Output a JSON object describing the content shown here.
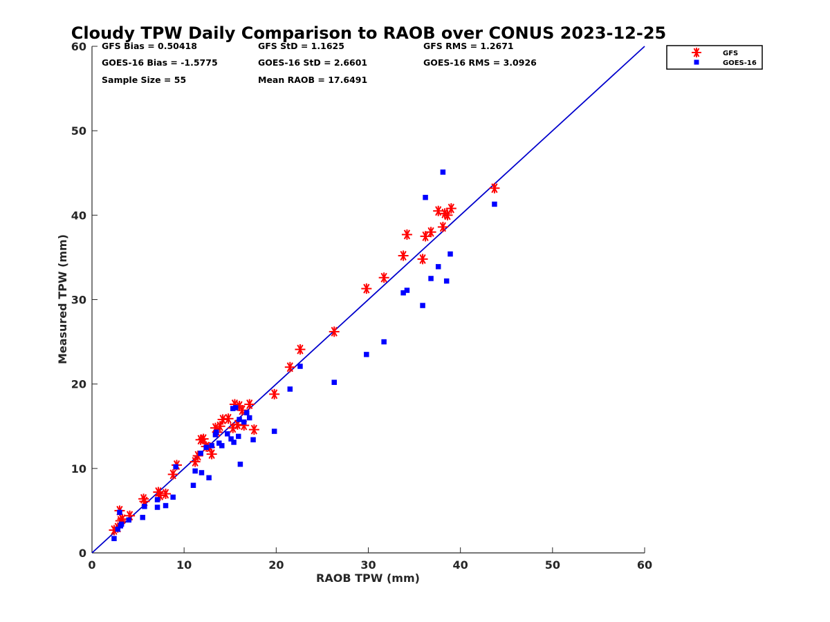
{
  "chart_data": {
    "type": "scatter",
    "title": "Cloudy TPW Daily Comparison to RAOB over CONUS 2023-12-25",
    "xlabel": "RAOB TPW (mm)",
    "ylabel": "Measured TPW (mm)",
    "xlim": [
      0,
      60
    ],
    "ylim": [
      0,
      60
    ],
    "xticks": [
      "0",
      "10",
      "20",
      "30",
      "40",
      "50",
      "60"
    ],
    "yticks": [
      "0",
      "10",
      "20",
      "30",
      "40",
      "50",
      "60"
    ],
    "grid": false,
    "legend_position": "outside-top-right",
    "reference_line": {
      "x": [
        0,
        60
      ],
      "y": [
        0,
        60
      ],
      "color": "#0000cc"
    },
    "stats": [
      [
        "GFS Bias = 0.50418",
        "GFS StD = 1.1625",
        "GFS RMS = 1.2671"
      ],
      [
        "GOES-16 Bias = -1.5775",
        "GOES-16 StD = 2.6601",
        "GOES-16 RMS = 3.0926"
      ],
      [
        "Sample Size = 55",
        "Mean RAOB = 17.6491",
        ""
      ]
    ],
    "series": [
      {
        "name": "GFS",
        "marker": "asterisk",
        "color": "#ff0000",
        "points": [
          [
            2.4,
            2.7
          ],
          [
            2.8,
            3.0
          ],
          [
            3.0,
            5.0
          ],
          [
            3.1,
            3.8
          ],
          [
            3.3,
            4.0
          ],
          [
            4.1,
            4.4
          ],
          [
            5.6,
            6.4
          ],
          [
            5.7,
            6.1
          ],
          [
            7.2,
            7.2
          ],
          [
            7.4,
            6.8
          ],
          [
            8.0,
            7.0
          ],
          [
            8.8,
            9.3
          ],
          [
            9.2,
            10.4
          ],
          [
            11.2,
            10.8
          ],
          [
            11.5,
            11.5
          ],
          [
            11.8,
            13.4
          ],
          [
            12.1,
            13.5
          ],
          [
            12.4,
            12.6
          ],
          [
            12.8,
            12.5
          ],
          [
            13.0,
            11.7
          ],
          [
            13.4,
            14.8
          ],
          [
            13.6,
            14.3
          ],
          [
            13.9,
            15.0
          ],
          [
            14.2,
            15.8
          ],
          [
            14.8,
            15.9
          ],
          [
            15.3,
            14.8
          ],
          [
            15.5,
            17.6
          ],
          [
            15.8,
            15.2
          ],
          [
            16.0,
            17.4
          ],
          [
            16.3,
            16.9
          ],
          [
            16.5,
            15.1
          ],
          [
            17.1,
            17.6
          ],
          [
            17.6,
            14.6
          ],
          [
            19.8,
            18.8
          ],
          [
            21.5,
            22.0
          ],
          [
            22.6,
            24.1
          ],
          [
            26.3,
            26.2
          ],
          [
            29.8,
            31.3
          ],
          [
            31.7,
            32.6
          ],
          [
            33.8,
            35.2
          ],
          [
            34.2,
            37.7
          ],
          [
            35.9,
            34.8
          ],
          [
            36.2,
            37.5
          ],
          [
            36.8,
            38.0
          ],
          [
            37.6,
            40.5
          ],
          [
            38.1,
            38.6
          ],
          [
            38.3,
            40.2
          ],
          [
            38.6,
            40.0
          ],
          [
            39.0,
            40.8
          ],
          [
            43.7,
            43.2
          ]
        ]
      },
      {
        "name": "GOES-16",
        "marker": "square",
        "color": "#0000ff",
        "points": [
          [
            2.4,
            1.7
          ],
          [
            2.8,
            2.8
          ],
          [
            3.0,
            4.8
          ],
          [
            3.1,
            3.2
          ],
          [
            3.2,
            3.4
          ],
          [
            4.0,
            3.9
          ],
          [
            5.5,
            4.2
          ],
          [
            5.7,
            5.5
          ],
          [
            7.1,
            5.4
          ],
          [
            7.1,
            6.3
          ],
          [
            8.0,
            5.6
          ],
          [
            8.8,
            6.6
          ],
          [
            9.1,
            10.2
          ],
          [
            11.0,
            8.0
          ],
          [
            11.2,
            9.7
          ],
          [
            11.8,
            11.8
          ],
          [
            11.9,
            9.5
          ],
          [
            12.4,
            12.5
          ],
          [
            12.7,
            8.9
          ],
          [
            13.0,
            12.7
          ],
          [
            13.4,
            14.0
          ],
          [
            13.5,
            14.3
          ],
          [
            13.8,
            13.0
          ],
          [
            14.1,
            12.7
          ],
          [
            14.7,
            14.1
          ],
          [
            15.1,
            13.5
          ],
          [
            15.3,
            17.1
          ],
          [
            15.4,
            13.1
          ],
          [
            15.6,
            17.2
          ],
          [
            15.9,
            13.8
          ],
          [
            16.0,
            15.8
          ],
          [
            16.1,
            10.5
          ],
          [
            16.5,
            15.5
          ],
          [
            16.8,
            16.6
          ],
          [
            17.1,
            16.0
          ],
          [
            17.5,
            13.4
          ],
          [
            19.8,
            14.4
          ],
          [
            21.5,
            19.4
          ],
          [
            22.6,
            22.1
          ],
          [
            26.3,
            20.2
          ],
          [
            29.8,
            23.5
          ],
          [
            31.7,
            25.0
          ],
          [
            33.8,
            30.8
          ],
          [
            34.2,
            31.1
          ],
          [
            35.9,
            29.3
          ],
          [
            36.2,
            42.1
          ],
          [
            36.8,
            32.5
          ],
          [
            37.6,
            33.9
          ],
          [
            38.1,
            45.1
          ],
          [
            38.5,
            32.2
          ],
          [
            38.9,
            35.4
          ],
          [
            43.7,
            41.3
          ]
        ]
      }
    ]
  }
}
